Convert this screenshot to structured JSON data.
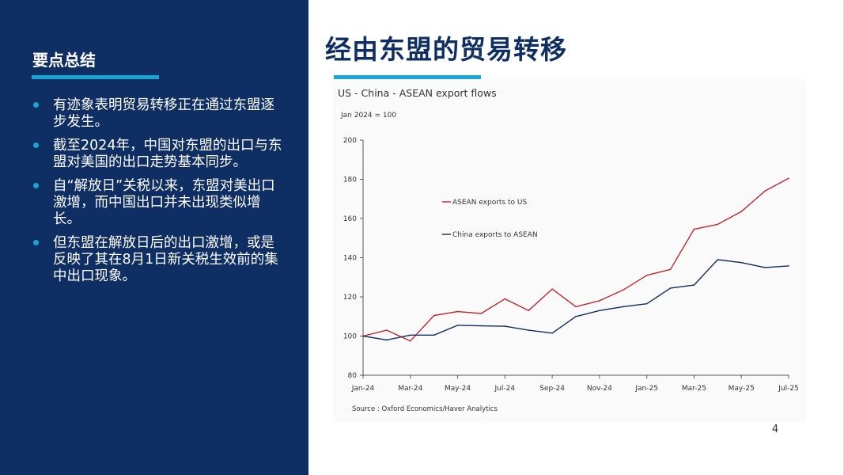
{
  "summary": {
    "title": "要点总结",
    "bullets": [
      "有迹象表明贸易转移正在通过东盟逐步发生。",
      "截至2024年，中国对东盟的出口与东盟对美国的出口走势基本同步。",
      "自“解放日”关税以来，东盟对美出口激增，而中国出口并未出现类似增长。",
      "但东盟在解放日后的出口激增，或是反映了其在8月1日新关税生效前的集中出口现象。"
    ]
  },
  "main": {
    "title": "经由东盟的贸易转移"
  },
  "page_number": "4",
  "colors": {
    "panel": "#0f2e63",
    "accent": "#18a5d8",
    "asean": "#c0272d",
    "china": "#0f2e63"
  },
  "chart_data": {
    "type": "line",
    "title": "US - China - ASEAN export flows",
    "subtitle": "Jan 2024 = 100",
    "source": "Source : Oxford Economics/Haver Analytics",
    "x": [
      "2024-01",
      "2024-02",
      "2024-03",
      "2024-04",
      "2024-05",
      "2024-06",
      "2024-07",
      "2024-08",
      "2024-09",
      "2024-10",
      "2024-11",
      "2024-12",
      "2025-01",
      "2025-02",
      "2025-03",
      "2025-04",
      "2025-05",
      "2025-06",
      "2025-07"
    ],
    "xticks": [
      "Jan-24",
      "Mar-24",
      "May-24",
      "Jul-24",
      "Sep-24",
      "Nov-24",
      "Jan-25",
      "Mar-25",
      "May-25",
      "Jul-25"
    ],
    "yticks": [
      "200",
      "180",
      "160",
      "140",
      "120",
      "100",
      "80"
    ],
    "ylim": [
      80,
      200
    ],
    "grid": false,
    "legend_position": "top-left",
    "series": [
      {
        "name": "ASEAN exports to US",
        "color": "#c0272d",
        "values": [
          100,
          103,
          97.5,
          110.5,
          112.5,
          111.5,
          119,
          113,
          124,
          115,
          118,
          123.5,
          131,
          134,
          154.5,
          157,
          163.5,
          174,
          180.5
        ]
      },
      {
        "name": "China exports to ASEAN",
        "color": "#0f2e63",
        "values": [
          100,
          98,
          100.5,
          100.5,
          105.5,
          105.2,
          105,
          103,
          101.5,
          110,
          113,
          115,
          116.5,
          124.5,
          126,
          139,
          137.5,
          135,
          135.8
        ]
      }
    ]
  }
}
